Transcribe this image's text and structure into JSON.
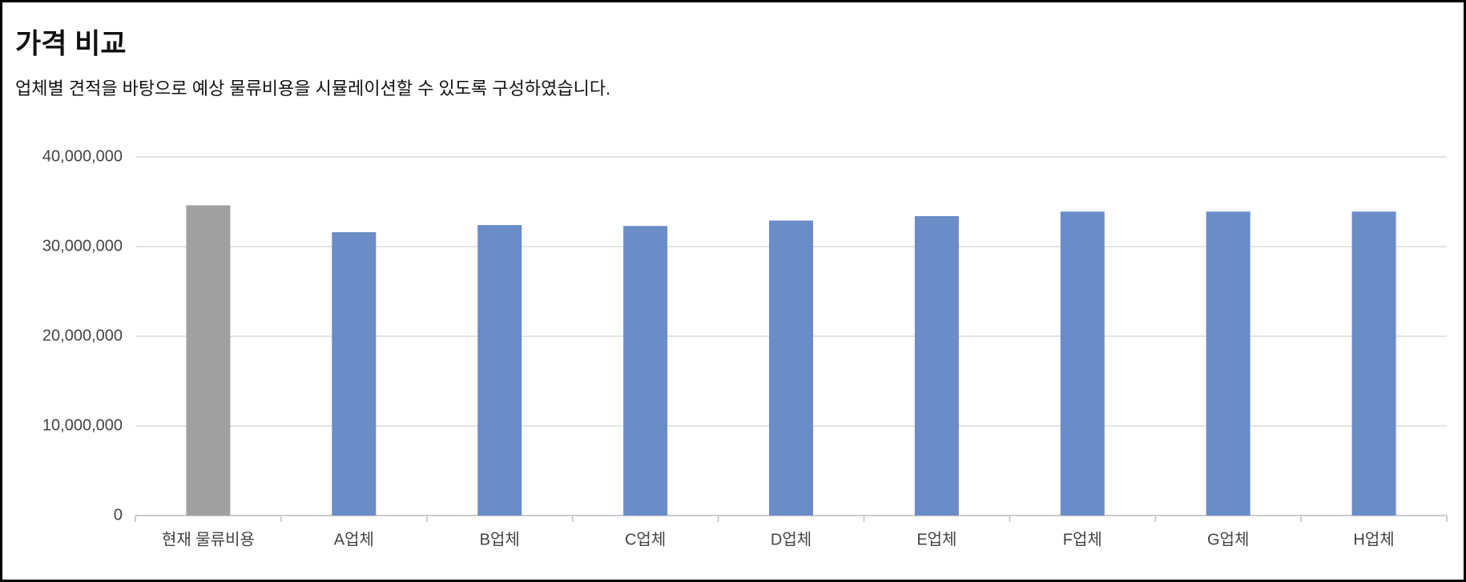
{
  "chart_data": {
    "type": "bar",
    "title": "가격 비교",
    "subtitle": "업체별 견적을 바탕으로 예상 물류비용을 시뮬레이션할 수 있도록 구성하였습니다.",
    "categories": [
      "현재 물류비용",
      "A업체",
      "B업체",
      "C업체",
      "D업체",
      "E업체",
      "F업체",
      "G업체",
      "H업체"
    ],
    "values": [
      34600000,
      31600000,
      32400000,
      32300000,
      32900000,
      33400000,
      33900000,
      33900000,
      33900000
    ],
    "colors": [
      "#a0a0a0",
      "#6a8cc7",
      "#6a8cc7",
      "#6a8cc7",
      "#6a8cc7",
      "#6a8cc7",
      "#6a8cc7",
      "#6a8cc7",
      "#6a8cc7"
    ],
    "ylim": [
      0,
      40000000
    ],
    "yticks": [
      0,
      {
        "value": 10000000,
        "label": "10,000,000"
      },
      {
        "value": 20000000,
        "label": "20,000,000"
      },
      {
        "value": 30000000,
        "label": "30,000,000"
      },
      {
        "value": 40000000,
        "label": "40,000,000"
      }
    ],
    "grid": true
  }
}
